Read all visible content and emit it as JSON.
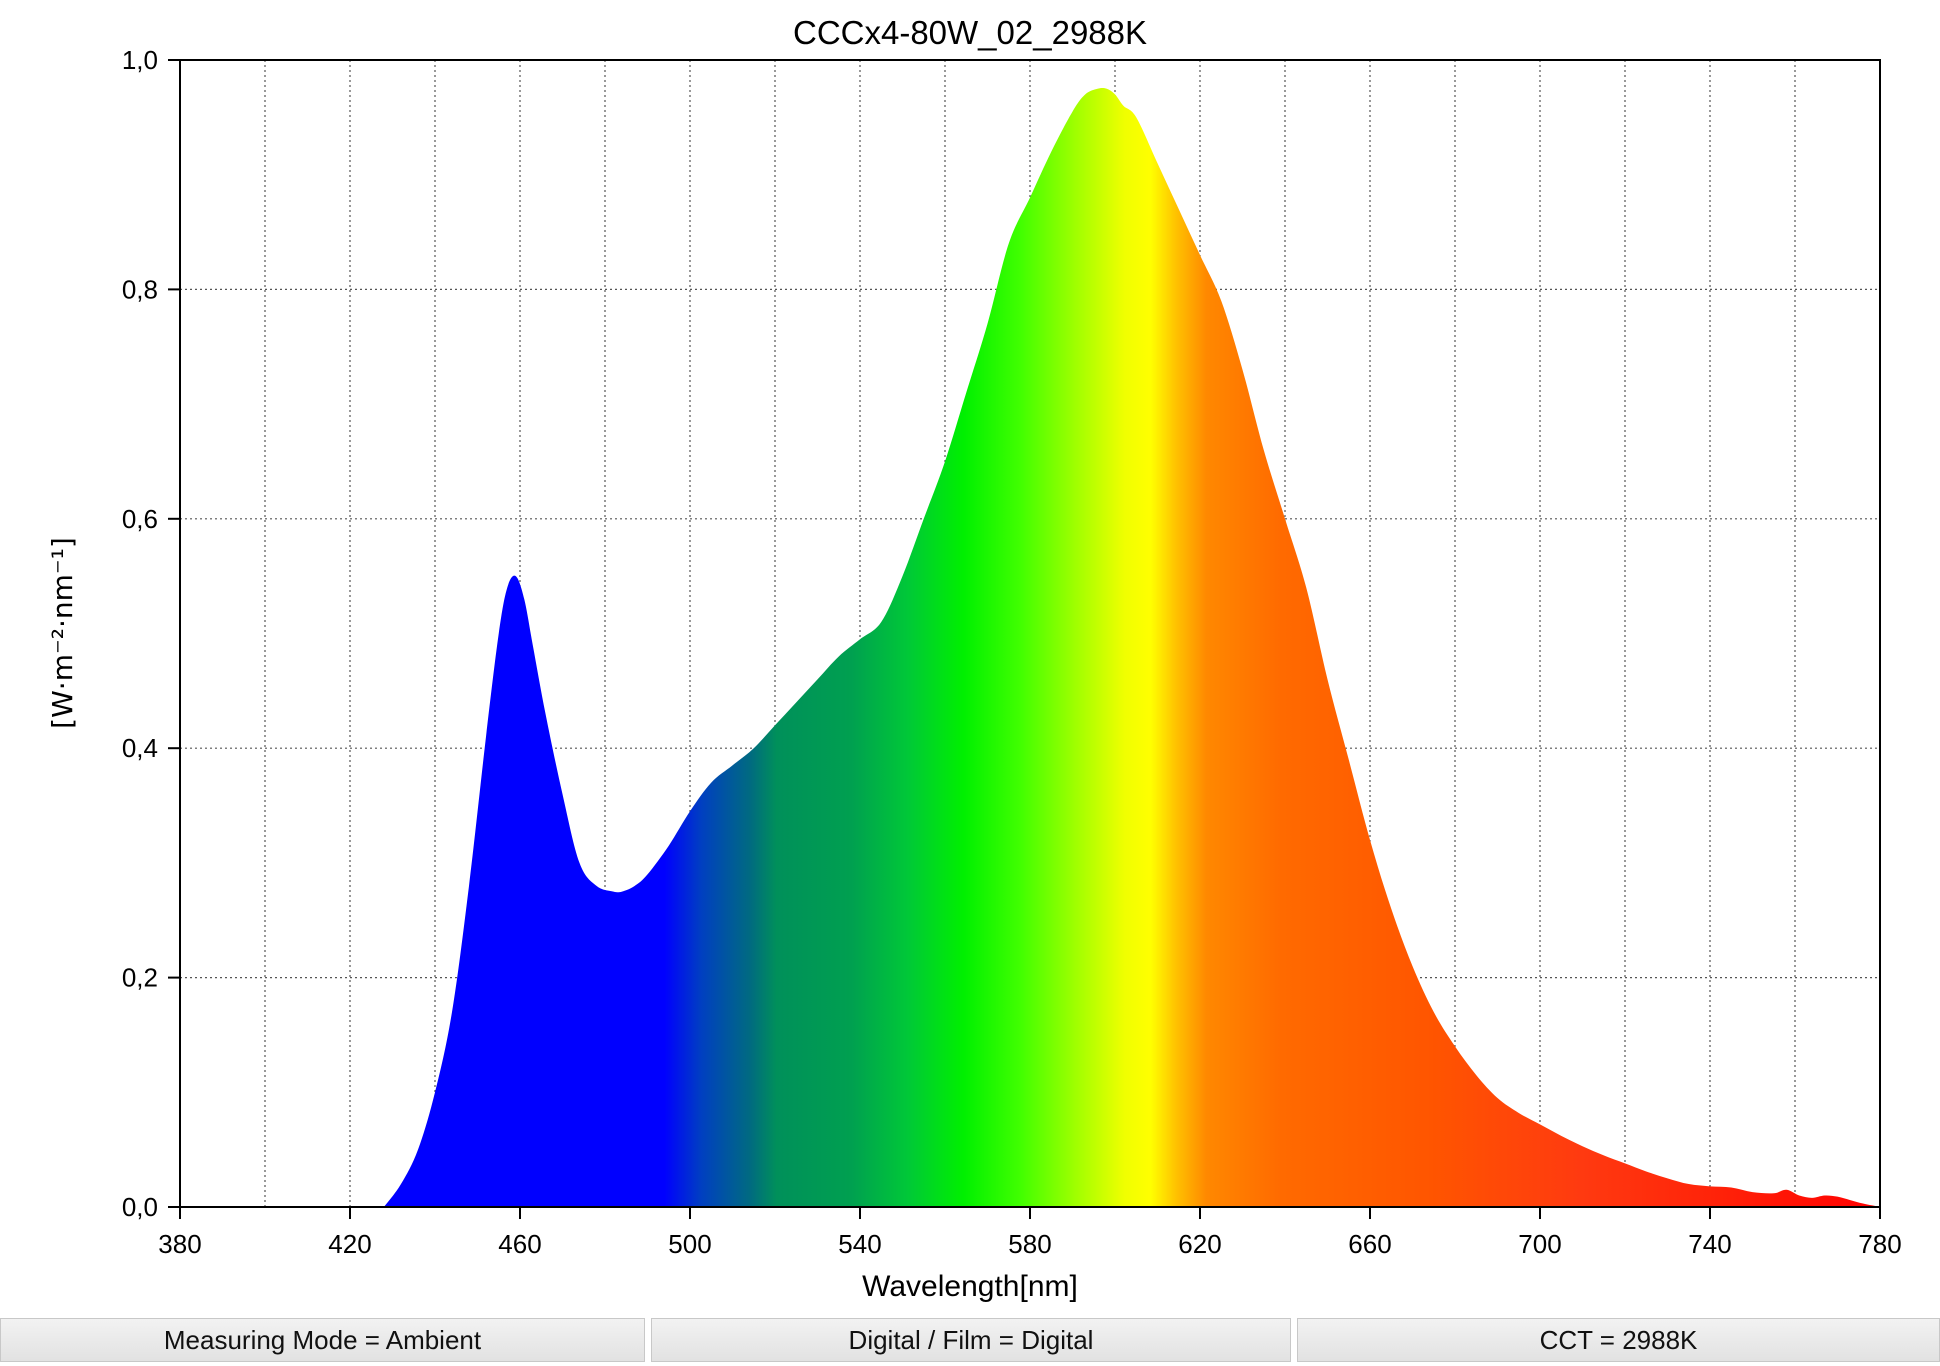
{
  "chart_data": {
    "type": "area",
    "title": "CCCx4-80W_02_2988K",
    "xlabel": "Wavelength[nm]",
    "ylabel": "[W·m⁻²·nm⁻¹]",
    "xlim": [
      380,
      780
    ],
    "ylim": [
      0,
      1.0
    ],
    "x_ticks": [
      380,
      420,
      460,
      500,
      540,
      580,
      620,
      660,
      700,
      740,
      780
    ],
    "y_ticks": [
      0,
      0.2,
      0.4,
      0.6,
      0.8,
      1.0
    ],
    "x_tick_labels": [
      "380",
      "420",
      "460",
      "500",
      "540",
      "580",
      "620",
      "660",
      "700",
      "740",
      "780"
    ],
    "y_tick_labels": [
      "0,0",
      "0,2",
      "0,4",
      "0,6",
      "0,8",
      "1,0"
    ],
    "grid": true,
    "fill": "visible-spectrum-gradient",
    "x": [
      428,
      432,
      436,
      440,
      444,
      448,
      452,
      455,
      457,
      459,
      461,
      463,
      466,
      470,
      474,
      478,
      482,
      484,
      487,
      490,
      495,
      500,
      505,
      510,
      515,
      520,
      525,
      530,
      535,
      540,
      545,
      550,
      555,
      560,
      565,
      570,
      575,
      580,
      585,
      590,
      593,
      596,
      598,
      600,
      602,
      605,
      610,
      615,
      620,
      625,
      630,
      635,
      640,
      645,
      650,
      655,
      660,
      665,
      670,
      675,
      680,
      685,
      690,
      695,
      700,
      705,
      710,
      715,
      720,
      725,
      730,
      735,
      740,
      745,
      750,
      755,
      758,
      761,
      764,
      767,
      770,
      773,
      776,
      780
    ],
    "y": [
      0.0,
      0.02,
      0.05,
      0.1,
      0.17,
      0.28,
      0.41,
      0.5,
      0.54,
      0.55,
      0.53,
      0.49,
      0.43,
      0.36,
      0.3,
      0.28,
      0.275,
      0.275,
      0.28,
      0.29,
      0.315,
      0.345,
      0.37,
      0.385,
      0.4,
      0.42,
      0.44,
      0.46,
      0.48,
      0.495,
      0.51,
      0.55,
      0.6,
      0.65,
      0.71,
      0.77,
      0.84,
      0.88,
      0.92,
      0.955,
      0.97,
      0.975,
      0.975,
      0.97,
      0.96,
      0.95,
      0.91,
      0.87,
      0.83,
      0.79,
      0.73,
      0.66,
      0.6,
      0.54,
      0.46,
      0.39,
      0.32,
      0.26,
      0.21,
      0.17,
      0.14,
      0.115,
      0.095,
      0.082,
      0.072,
      0.062,
      0.053,
      0.045,
      0.038,
      0.031,
      0.025,
      0.02,
      0.018,
      0.017,
      0.013,
      0.012,
      0.015,
      0.01,
      0.008,
      0.01,
      0.009,
      0.006,
      0.003,
      0.0
    ]
  },
  "status_bar": {
    "measuring_mode": "Measuring Mode = Ambient",
    "digital_film": "Digital / Film = Digital",
    "cct": "CCT = 2988K"
  }
}
